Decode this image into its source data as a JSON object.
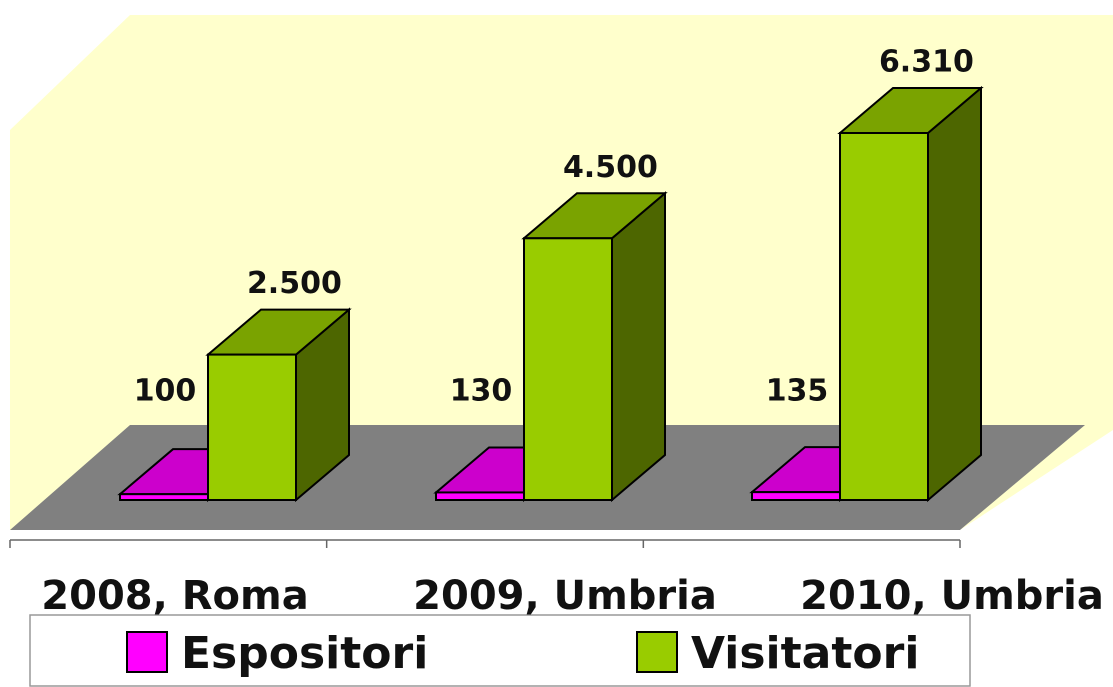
{
  "chart_data": {
    "type": "bar3d",
    "categories": [
      "2008, Roma",
      "2009, Umbria",
      "2010, Umbria"
    ],
    "series": [
      {
        "name": "Espositori",
        "color": "#ff00ff",
        "values": [
          100,
          130,
          135
        ]
      },
      {
        "name": "Visitatori",
        "color": "#99cc00",
        "values": [
          2500,
          4500,
          6310
        ],
        "value_labels": [
          "2.500",
          "4.500",
          "6.310"
        ]
      }
    ]
  }
}
